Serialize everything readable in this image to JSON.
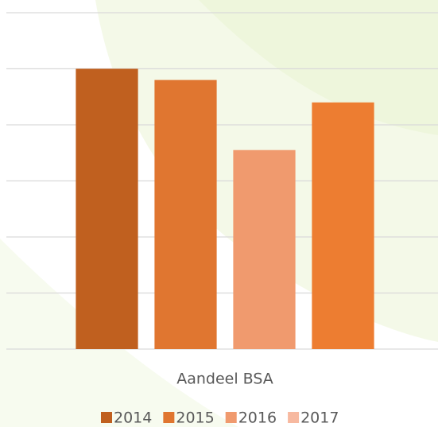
{
  "chart_data": {
    "type": "bar",
    "categories": [
      "Aandeel BSA"
    ],
    "series": [
      {
        "name": "2014",
        "color": "#c0601f",
        "legend_color": "#c0601f",
        "values": [
          5.0
        ]
      },
      {
        "name": "2015",
        "color": "#e07630",
        "legend_color": "#e07630",
        "values": [
          4.8
        ]
      },
      {
        "name": "2016",
        "color": "#f09a6e",
        "legend_color": "#f09a6e",
        "values": [
          3.55
        ]
      },
      {
        "name": "2017",
        "color": "#ed7d31",
        "legend_color": "#f7b9a0",
        "values": [
          4.4
        ]
      }
    ],
    "ylim": [
      0,
      6
    ],
    "yticks": [
      0,
      1,
      2,
      3,
      4,
      5,
      6
    ],
    "show_tick_labels": false,
    "grid": true,
    "legend": "bottom"
  }
}
